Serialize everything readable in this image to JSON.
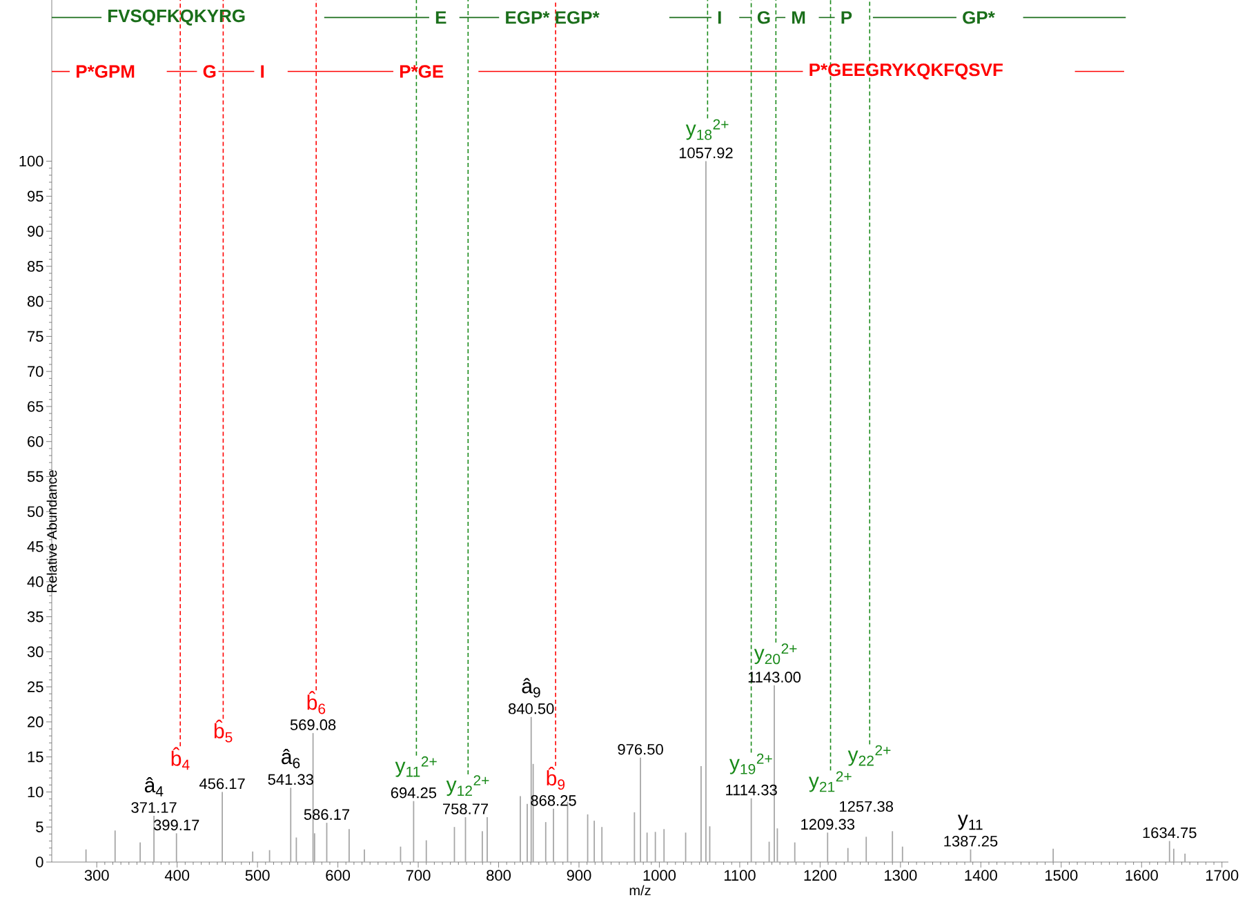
{
  "chart_data": {
    "type": "bar",
    "xlabel": "m/z",
    "ylabel": "Relative Abundance",
    "xlim": [
      244,
      1708
    ],
    "ylim": [
      0,
      123
    ],
    "xticks": [
      300,
      400,
      500,
      600,
      700,
      800,
      900,
      1000,
      1100,
      1200,
      1300,
      1400,
      1500,
      1600,
      1700
    ],
    "yticks": [
      0,
      5,
      10,
      15,
      20,
      25,
      30,
      35,
      40,
      45,
      50,
      55,
      60,
      65,
      70,
      75,
      80,
      85,
      90,
      95,
      100
    ],
    "grid": false,
    "legend": false,
    "marker": "none",
    "series": [
      {
        "color": "#a6a6a6",
        "x": [
          286.6,
          322.8,
          354,
          371.17,
          399.17,
          456.17,
          494,
          515,
          541.33,
          548.3,
          569.08,
          571,
          586.17,
          614,
          633,
          678,
          694.25,
          710,
          745,
          758.77,
          779.7,
          785.8,
          827,
          835.6,
          840.5,
          843,
          858.6,
          868.25,
          885.8,
          910.8,
          919,
          928.5,
          969,
          976.5,
          984.7,
          995,
          1005.8,
          1032.7,
          1051.9,
          1057.92,
          1062.7,
          1114.33,
          1136.6,
          1143.0,
          1146.8,
          1168.5,
          1209.33,
          1234.6,
          1257.38,
          1290,
          1302.5,
          1387.25,
          1490,
          1634.75,
          1640,
          1654
        ],
        "values": [
          1.8,
          4.5,
          2.8,
          6.6,
          4.1,
          10.0,
          1.5,
          1.7,
          10.6,
          3.5,
          18.4,
          4.1,
          5.6,
          4.7,
          1.8,
          2.2,
          8.7,
          3.1,
          5.0,
          6.4,
          4.4,
          6.4,
          9.4,
          8.3,
          20.7,
          14.0,
          5.7,
          7.6,
          8.6,
          6.8,
          5.9,
          5.0,
          7.1,
          14.9,
          4.2,
          4.3,
          4.7,
          4.2,
          13.7,
          100,
          5.1,
          9.1,
          2.9,
          25.2,
          4.8,
          2.8,
          4.2,
          2.0,
          3.6,
          4.4,
          2.2,
          1.8,
          1.9,
          3.0,
          1.9,
          1.2
        ]
      },
      {
        "type": "line",
        "name": "FVSQFKQKYRG",
        "color": "#1a6e1a",
        "x": [
          244,
          305.9
        ],
        "values": [
          120.5,
          120.5
        ]
      },
      {
        "type": "line",
        "name": "E",
        "color": "#1a6e1a",
        "x": [
          583,
          713.6
        ],
        "values": [
          120.5,
          120.5
        ]
      },
      {
        "type": "line",
        "name": "EGP* EGP*",
        "color": "#1a6e1a",
        "x": [
          751.2,
          800.6
        ],
        "values": [
          120.5,
          120.5
        ]
      },
      {
        "type": "line",
        "name": "I",
        "color": "#1a6e1a",
        "x": [
          1012.4,
          1064.8
        ],
        "values": [
          120.5,
          120.5
        ]
      },
      {
        "type": "line",
        "name": "G",
        "color": "#1a6e1a",
        "x": [
          1099.4,
          1114.3
        ],
        "values": [
          120.5,
          120.5
        ]
      },
      {
        "type": "line",
        "name": "M",
        "color": "#1a6e1a",
        "x": [
          1145,
          1156.8
        ],
        "values": [
          120.5,
          120.5
        ]
      },
      {
        "type": "line",
        "name": "P",
        "color": "#1a6e1a",
        "x": [
          1198.4,
          1218.2
        ],
        "values": [
          120.5,
          120.5
        ]
      },
      {
        "type": "line",
        "name": "GP*",
        "color": "#1a6e1a",
        "x": [
          1265.7,
          1369.6
        ],
        "values": [
          120.5,
          120.5
        ]
      },
      {
        "type": "line",
        "color": "#1a6e1a",
        "x": [
          1452.6,
          1580.3
        ],
        "values": [
          120.5,
          120.5
        ]
      },
      {
        "type": "line",
        "name": "P*GPM",
        "color": "#ff0000",
        "x": [
          244,
          266.4
        ],
        "values": [
          112.8,
          112.8
        ]
      },
      {
        "type": "line",
        "name": "G",
        "color": "#ff0000",
        "x": [
          387.1,
          424.7
        ],
        "values": [
          112.8,
          112.8
        ]
      },
      {
        "type": "line",
        "name": "I",
        "color": "#ff0000",
        "x": [
          451.4,
          495.9
        ],
        "values": [
          112.8,
          112.8
        ]
      },
      {
        "type": "line",
        "name": "P*GE",
        "color": "#ff0000",
        "x": [
          537.5,
          669
        ],
        "values": [
          112.8,
          112.8
        ]
      },
      {
        "type": "line",
        "name": "P*GEEGRYKQKFQSVF",
        "color": "#ff0000",
        "x": [
          774.9,
          1178.6
        ],
        "values": [
          112.8,
          112.8
        ]
      },
      {
        "type": "line",
        "color": "#ff0000",
        "x": [
          1517,
          1578.3
        ],
        "values": [
          112.8,
          112.8
        ]
      }
    ],
    "annotations": [
      {
        "text": "371.17",
        "x": 371.17,
        "y": 6.6
      },
      {
        "text": "399.17",
        "x": 399.17,
        "y": 4.1
      },
      {
        "text": "456.17",
        "x": 456.17,
        "y": 10.0
      },
      {
        "text": "541.33",
        "x": 541.33,
        "y": 10.6
      },
      {
        "text": "569.08",
        "x": 569.08,
        "y": 18.4
      },
      {
        "text": "586.17",
        "x": 586.17,
        "y": 5.6
      },
      {
        "text": "694.25",
        "x": 694.25,
        "y": 8.7
      },
      {
        "text": "758.77",
        "x": 758.77,
        "y": 6.4
      },
      {
        "text": "840.50",
        "x": 840.5,
        "y": 20.7
      },
      {
        "text": "868.25",
        "x": 868.25,
        "y": 7.6
      },
      {
        "text": "976.50",
        "x": 976.5,
        "y": 14.9
      },
      {
        "text": "1057.92",
        "x": 1057.92,
        "y": 100
      },
      {
        "text": "1114.33",
        "x": 1114.33,
        "y": 9.1
      },
      {
        "text": "1143.00",
        "x": 1143.0,
        "y": 25.2
      },
      {
        "text": "1209.33",
        "x": 1209.33,
        "y": 4.2
      },
      {
        "text": "1257.38",
        "x": 1257.38,
        "y": 3.6
      },
      {
        "text": "1387.25",
        "x": 1387.25,
        "y": 1.8
      },
      {
        "text": "1634.75",
        "x": 1634.75,
        "y": 3.0
      },
      {
        "text": "â$_{4}$",
        "x": 371.17,
        "y": 6.6
      },
      {
        "text": "â$_{6}$",
        "x": 541.33,
        "y": 10.6
      },
      {
        "text": "â$_{9}$",
        "x": 840.5,
        "y": 20.7
      },
      {
        "text": "y$_{11}$",
        "x": 1387.25,
        "y": 1.8
      }
    ],
    "ref_lines": [
      {
        "axis": "x",
        "value": 403.9,
        "color": "#ff0000",
        "line_style": "dashed",
        "label": "b̂$_{4}$"
      },
      {
        "axis": "x",
        "value": 457.3,
        "color": "#ff0000",
        "line_style": "dashed",
        "label": "b̂$_{5}$"
      },
      {
        "axis": "x",
        "value": 573,
        "color": "#ff0000",
        "line_style": "dashed",
        "label": "b̂$_{6}$"
      },
      {
        "axis": "x",
        "value": 870.9,
        "color": "#ff0000",
        "line_style": "dashed",
        "label": "b̂$_{9}$"
      },
      {
        "axis": "x",
        "value": 697.7,
        "color": "#1a8a1a",
        "line_style": "dashed",
        "label": "y$_{11}$$^{2+}$"
      },
      {
        "axis": "x",
        "value": 762,
        "color": "#1a8a1a",
        "line_style": "dashed",
        "label": "y$_{12}$$^{2+}$"
      },
      {
        "axis": "x",
        "value": 1060,
        "color": "#1a8a1a",
        "line_style": "dashed",
        "label": "y$_{18}$$^{2+}$"
      },
      {
        "axis": "x",
        "value": 1114.3,
        "color": "#1a8a1a",
        "line_style": "dashed",
        "label": "y$_{19}$$^{2+}$"
      },
      {
        "axis": "x",
        "value": 1145,
        "color": "#1a8a1a",
        "line_style": "dashed",
        "label": "y$_{20}$$^{2+}$"
      },
      {
        "axis": "x",
        "value": 1213,
        "color": "#1a8a1a",
        "line_style": "dashed",
        "label": "y$_{21}$$^{2+}$"
      },
      {
        "axis": "x",
        "value": 1261.7,
        "color": "#1a8a1a",
        "line_style": "dashed",
        "label": "y$_{22}$$^{2+}$"
      }
    ]
  }
}
